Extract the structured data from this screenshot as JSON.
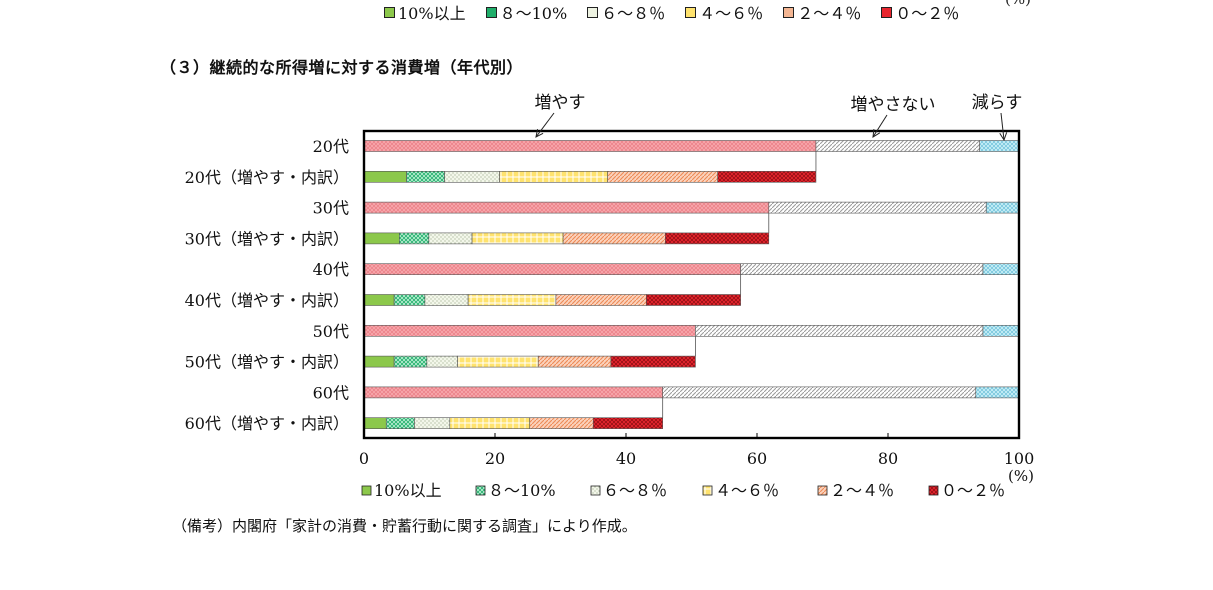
{
  "legend_labels": [
    "10%以上",
    "８～10%",
    "６～８％",
    "４～６％",
    "２～４％",
    "０～２％"
  ],
  "legend_colors": [
    "#8cc84b",
    "#1fae6a",
    "#eef3e2",
    "#ffe36e",
    "#f4b693",
    "#e8262f"
  ],
  "top_unit": "(%)",
  "section_title": "（３）継続的な所得増に対する消費増（年代別）",
  "note": "（備考）内閣府「家計の消費・貯蓄行動に関する調査」により作成。",
  "annotations": [
    "増やす",
    "増やさない",
    "減らす"
  ],
  "chart_data": {
    "type": "bar",
    "orientation": "horizontal",
    "stacked": true,
    "xlim": [
      0,
      100
    ],
    "xticks": [
      "0",
      "20",
      "40",
      "60",
      "80",
      "100"
    ],
    "xunit": "(%)",
    "categories": [
      "20代",
      "20代（増やす・内訳）",
      "30代",
      "30代（増やす・内訳）",
      "40代",
      "40代（増やす・内訳）",
      "50代",
      "50代（増やす・内訳）",
      "60代",
      "60代（増やす・内訳）"
    ],
    "main_rows": [
      {
        "category": "20代",
        "values": [
          69.0,
          25.0,
          6.0
        ]
      },
      {
        "category": "30代",
        "values": [
          61.8,
          33.2,
          5.0
        ]
      },
      {
        "category": "40代",
        "values": [
          57.5,
          37.0,
          5.5
        ]
      },
      {
        "category": "50代",
        "values": [
          50.6,
          43.9,
          5.5
        ]
      },
      {
        "category": "60代",
        "values": [
          45.6,
          47.8,
          6.6
        ]
      }
    ],
    "main_series": [
      {
        "name": "増やす",
        "color": "#f7a3a8"
      },
      {
        "name": "増やさない",
        "color": "#d8d8d8"
      },
      {
        "name": "減らす",
        "color": "#aee4f0"
      }
    ],
    "breakdown_rows": [
      {
        "category": "20代（増やす・内訳）",
        "values": [
          6.5,
          5.8,
          8.4,
          16.5,
          16.8,
          15.0
        ]
      },
      {
        "category": "30代（増やす・内訳）",
        "values": [
          5.4,
          4.5,
          6.6,
          13.9,
          15.6,
          15.8
        ]
      },
      {
        "category": "40代（増やす・内訳）",
        "values": [
          4.6,
          4.7,
          6.6,
          13.4,
          13.8,
          14.4
        ]
      },
      {
        "category": "50代（増やす・内訳）",
        "values": [
          4.6,
          5.0,
          4.7,
          12.3,
          11.1,
          12.9
        ]
      },
      {
        "category": "60代（増やす・内訳）",
        "values": [
          3.4,
          4.3,
          5.4,
          12.2,
          9.7,
          10.6
        ]
      }
    ],
    "breakdown_series": [
      "10%以上",
      "８～10%",
      "６～８％",
      "４～６％",
      "２～４％",
      "０～２％"
    ],
    "legend_position": "bottom"
  }
}
